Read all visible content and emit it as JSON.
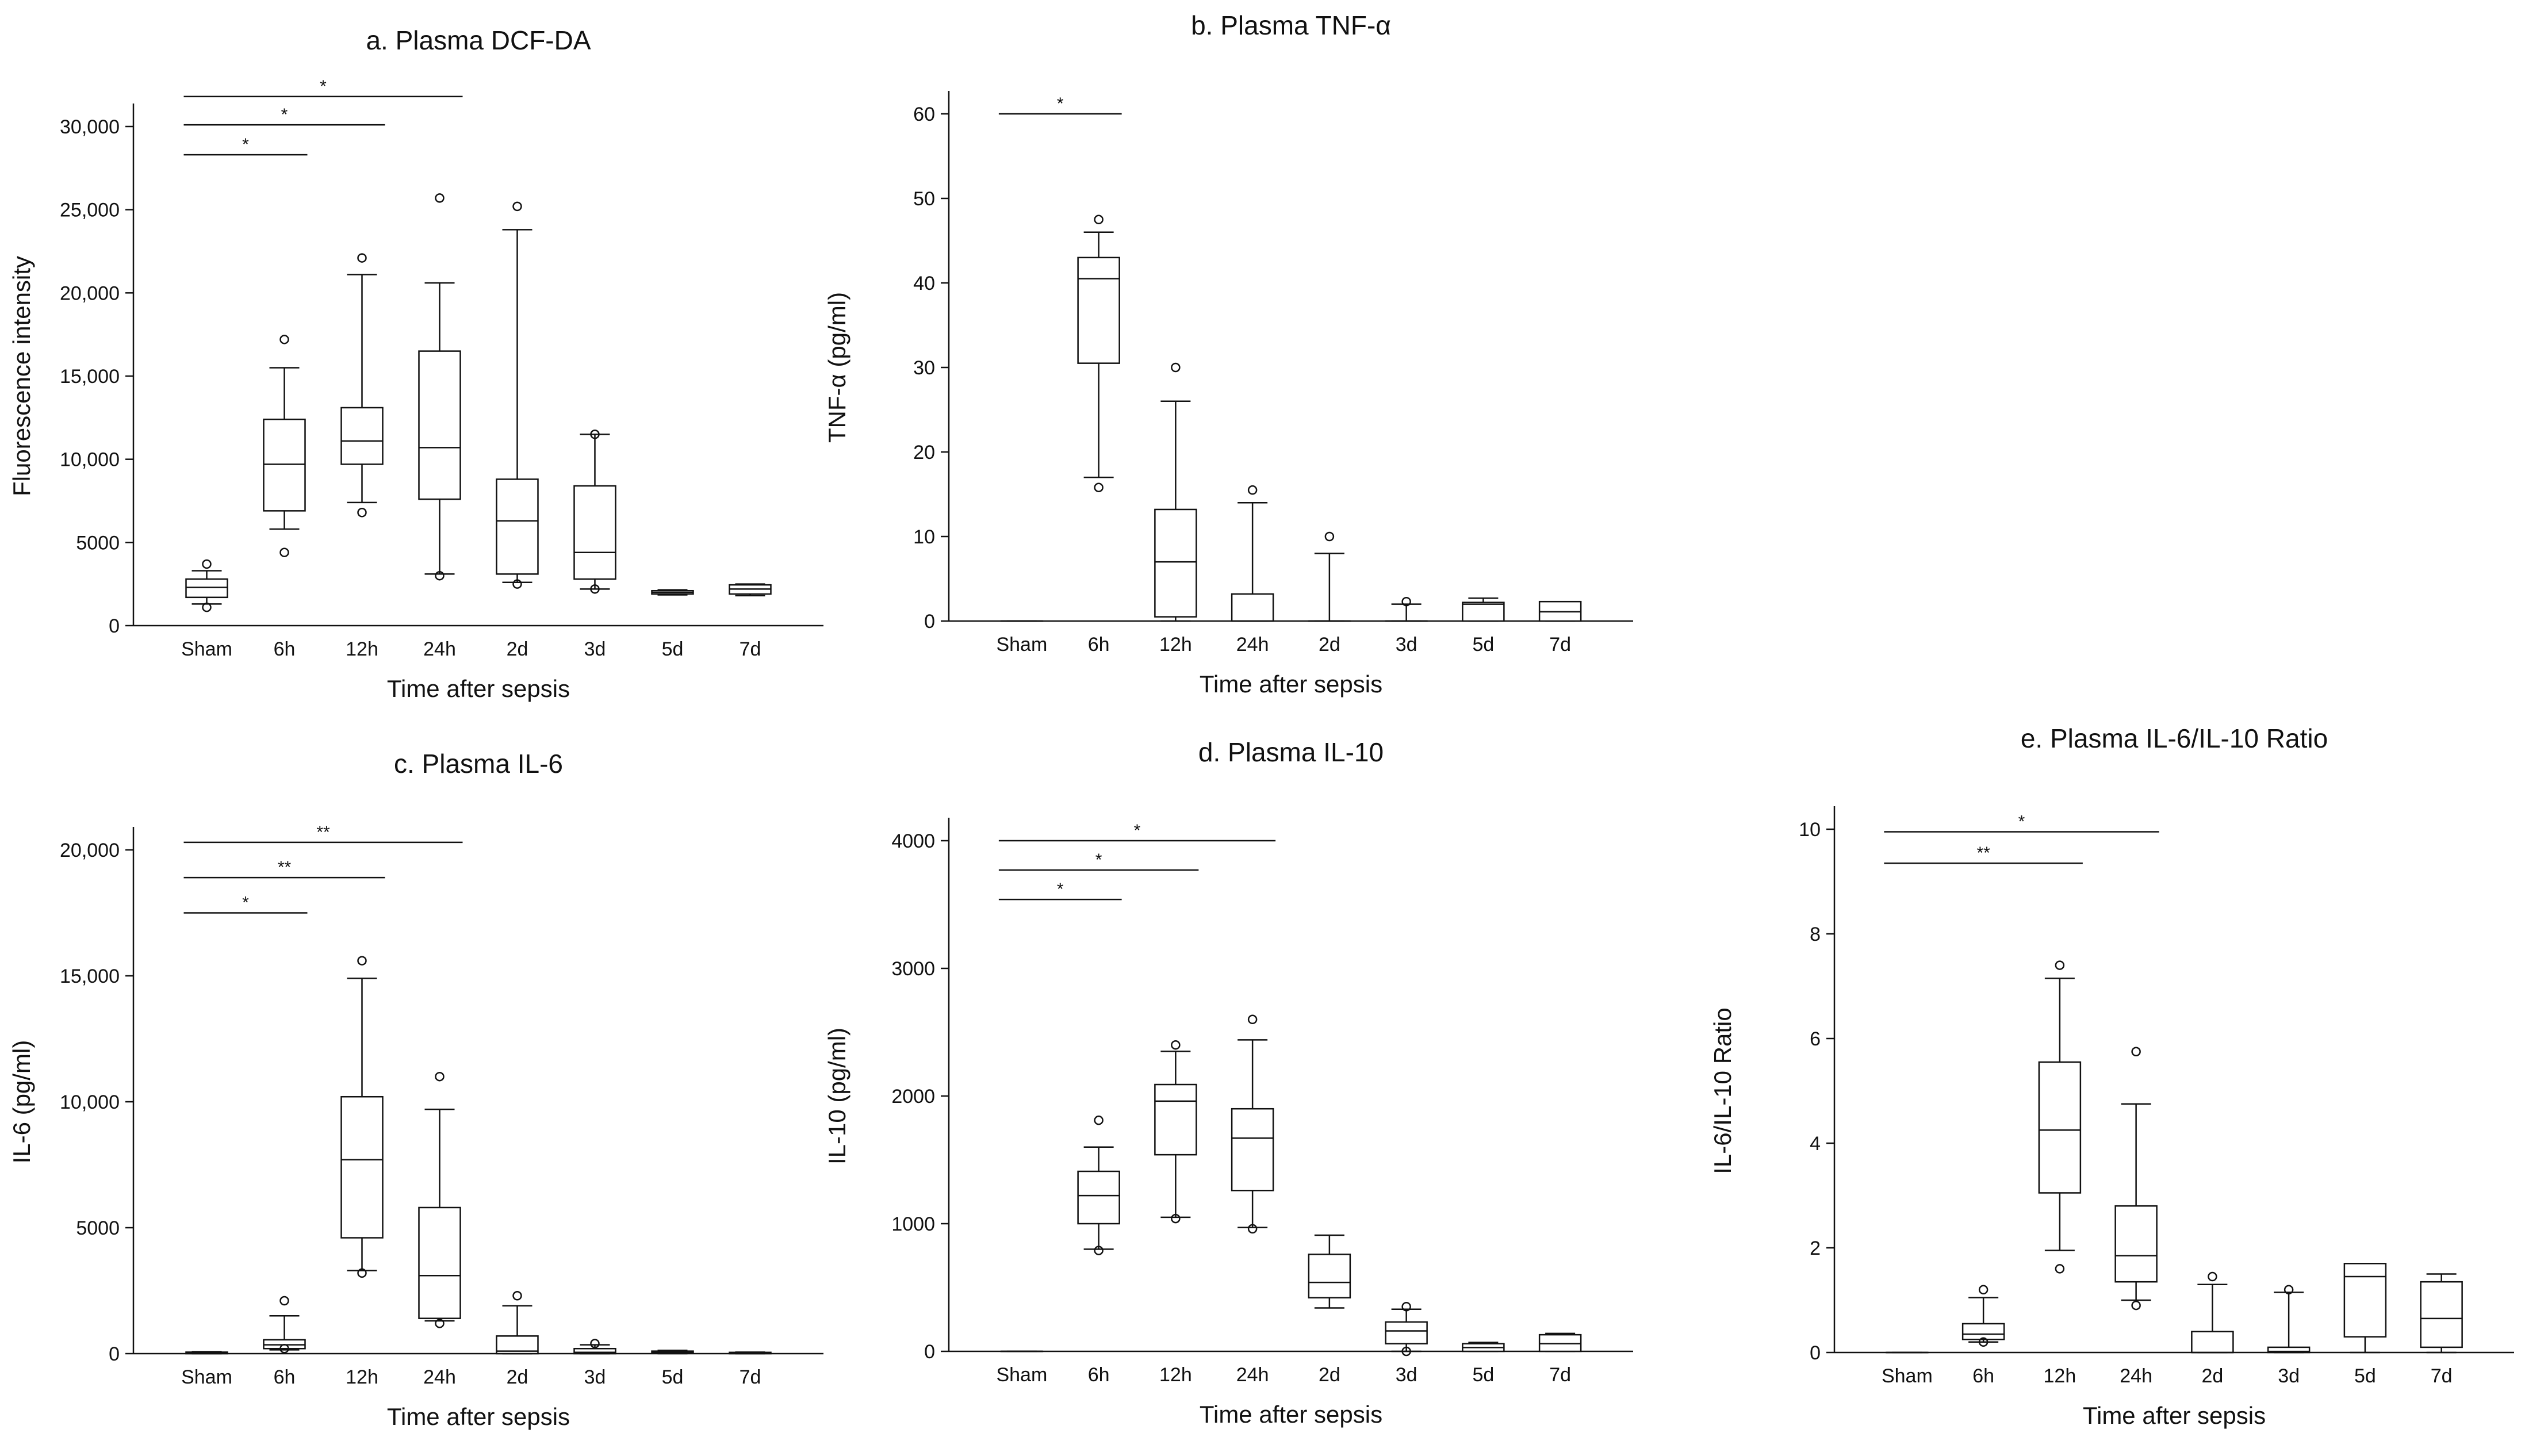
{
  "figure": {
    "colors": {
      "ink": "#111111",
      "box_fill": "#ffffff",
      "background": "#ffffff"
    }
  },
  "chart_data": [
    {
      "id": "a",
      "type": "boxplot",
      "title": "a. Plasma DCF-DA",
      "xlabel": "Time after sepsis",
      "ylabel": "Fluorescence intensity",
      "ylim": [
        0,
        30000
      ],
      "yticks": [
        0,
        5000,
        10000,
        15000,
        20000,
        25000,
        30000
      ],
      "ytick_labels": [
        "0",
        "5000",
        "10,000",
        "15,000",
        "20,000",
        "25,000",
        "30,000"
      ],
      "categories": [
        "Sham",
        "6h",
        "12h",
        "24h",
        "2d",
        "3d",
        "5d",
        "7d"
      ],
      "boxes": [
        {
          "q1": 1700,
          "median": 2300,
          "q3": 2800,
          "whisker_low": 1300,
          "whisker_high": 3300,
          "outliers": [
            1100,
            3700
          ]
        },
        {
          "q1": 6900,
          "median": 9700,
          "q3": 12400,
          "whisker_low": 5800,
          "whisker_high": 15500,
          "outliers": [
            4400,
            17200
          ]
        },
        {
          "q1": 9700,
          "median": 11100,
          "q3": 13100,
          "whisker_low": 7400,
          "whisker_high": 21100,
          "outliers": [
            6800,
            22100
          ]
        },
        {
          "q1": 7600,
          "median": 10700,
          "q3": 16500,
          "whisker_low": 3100,
          "whisker_high": 20600,
          "outliers": [
            3000,
            25700
          ]
        },
        {
          "q1": 3100,
          "median": 6300,
          "q3": 8800,
          "whisker_low": 2600,
          "whisker_high": 23800,
          "outliers": [
            2500,
            25200
          ]
        },
        {
          "q1": 2800,
          "median": 4400,
          "q3": 8400,
          "whisker_low": 2200,
          "whisker_high": 11500,
          "outliers": [
            2200,
            11500
          ]
        },
        {
          "q1": 1900,
          "median": 2000,
          "q3": 2100,
          "whisker_low": 1850,
          "whisker_high": 2150,
          "outliers": []
        },
        {
          "q1": 1900,
          "median": 2200,
          "q3": 2450,
          "whisker_low": 1800,
          "whisker_high": 2500,
          "outliers": []
        }
      ],
      "significance": [
        {
          "from": "Sham",
          "to": "6h",
          "label": "*",
          "y": 28300
        },
        {
          "from": "Sham",
          "to": "12h",
          "label": "*",
          "y": 30100
        },
        {
          "from": "Sham",
          "to": "24h",
          "label": "*",
          "y": 31800
        }
      ]
    },
    {
      "id": "b",
      "type": "boxplot",
      "title": "b. Plasma TNF-α",
      "xlabel": "Time after sepsis",
      "ylabel": "TNF-α (pg/ml)",
      "ylim": [
        0,
        60
      ],
      "yticks": [
        0,
        10,
        20,
        30,
        40,
        50,
        60
      ],
      "ytick_labels": [
        "0",
        "10",
        "20",
        "30",
        "40",
        "50",
        "60"
      ],
      "categories": [
        "Sham",
        "6h",
        "12h",
        "24h",
        "2d",
        "3d",
        "5d",
        "7d"
      ],
      "boxes": [
        {
          "q1": 0,
          "median": 0,
          "q3": 0,
          "whisker_low": 0,
          "whisker_high": 0,
          "outliers": []
        },
        {
          "q1": 30.5,
          "median": 40.5,
          "q3": 43,
          "whisker_low": 17,
          "whisker_high": 46,
          "outliers": [
            15.8,
            47.5
          ]
        },
        {
          "q1": 0.5,
          "median": 7,
          "q3": 13.2,
          "whisker_low": 0,
          "whisker_high": 26,
          "outliers": [
            30
          ]
        },
        {
          "q1": 0,
          "median": 0,
          "q3": 3.2,
          "whisker_low": 0,
          "whisker_high": 14,
          "outliers": [
            15.5
          ]
        },
        {
          "q1": 0,
          "median": 0,
          "q3": 0,
          "whisker_low": 0,
          "whisker_high": 8,
          "outliers": [
            10
          ]
        },
        {
          "q1": 0,
          "median": 0,
          "q3": 0,
          "whisker_low": 0,
          "whisker_high": 2,
          "outliers": [
            2.3
          ]
        },
        {
          "q1": 0,
          "median": 2,
          "q3": 2.2,
          "whisker_low": 0,
          "whisker_high": 2.7,
          "outliers": []
        },
        {
          "q1": 0,
          "median": 1.1,
          "q3": 2.3,
          "whisker_low": 0,
          "whisker_high": 2.3,
          "outliers": []
        }
      ],
      "significance": [
        {
          "from": "Sham",
          "to": "6h",
          "label": "*",
          "y": 60
        }
      ]
    },
    {
      "id": "c",
      "type": "boxplot",
      "title": "c. Plasma IL-6",
      "xlabel": "Time after sepsis",
      "ylabel": "IL-6 (pg/ml)",
      "ylim": [
        0,
        20000
      ],
      "yticks": [
        0,
        5000,
        10000,
        15000,
        20000
      ],
      "ytick_labels": [
        "0",
        "5000",
        "10,000",
        "15,000",
        "20,000"
      ],
      "categories": [
        "Sham",
        "6h",
        "12h",
        "24h",
        "2d",
        "3d",
        "5d",
        "7d"
      ],
      "boxes": [
        {
          "q1": 0,
          "median": 20,
          "q3": 60,
          "whisker_low": 0,
          "whisker_high": 80,
          "outliers": []
        },
        {
          "q1": 200,
          "median": 350,
          "q3": 550,
          "whisker_low": 150,
          "whisker_high": 1500,
          "outliers": [
            200,
            2100
          ]
        },
        {
          "q1": 4600,
          "median": 7700,
          "q3": 10200,
          "whisker_low": 3300,
          "whisker_high": 14900,
          "outliers": [
            3200,
            15600
          ]
        },
        {
          "q1": 1400,
          "median": 3100,
          "q3": 5800,
          "whisker_low": 1300,
          "whisker_high": 9700,
          "outliers": [
            1200,
            11000
          ]
        },
        {
          "q1": 0,
          "median": 100,
          "q3": 700,
          "whisker_low": 0,
          "whisker_high": 1900,
          "outliers": [
            2300
          ]
        },
        {
          "q1": 0,
          "median": 50,
          "q3": 200,
          "whisker_low": 0,
          "whisker_high": 350,
          "outliers": [
            400
          ]
        },
        {
          "q1": 20,
          "median": 50,
          "q3": 100,
          "whisker_low": 0,
          "whisker_high": 130,
          "outliers": []
        },
        {
          "q1": 0,
          "median": 20,
          "q3": 50,
          "whisker_low": 0,
          "whisker_high": 60,
          "outliers": []
        }
      ],
      "significance": [
        {
          "from": "Sham",
          "to": "6h",
          "label": "*",
          "y": 17500
        },
        {
          "from": "Sham",
          "to": "12h",
          "label": "**",
          "y": 18900
        },
        {
          "from": "Sham",
          "to": "24h",
          "label": "**",
          "y": 20300
        }
      ]
    },
    {
      "id": "d",
      "type": "boxplot",
      "title": "d. Plasma IL-10",
      "xlabel": "Time after sepsis",
      "ylabel": "IL-10 (pg/ml)",
      "ylim": [
        0,
        4000
      ],
      "yticks": [
        0,
        1000,
        2000,
        3000,
        4000
      ],
      "ytick_labels": [
        "0",
        "1000",
        "2000",
        "3000",
        "4000"
      ],
      "categories": [
        "Sham",
        "6h",
        "12h",
        "24h",
        "2d",
        "3d",
        "5d",
        "7d"
      ],
      "boxes": [
        {
          "q1": 0,
          "median": 0,
          "q3": 0,
          "whisker_low": 0,
          "whisker_high": 0,
          "outliers": []
        },
        {
          "q1": 1000,
          "median": 1220,
          "q3": 1410,
          "whisker_low": 800,
          "whisker_high": 1600,
          "outliers": [
            790,
            1810
          ]
        },
        {
          "q1": 1540,
          "median": 1960,
          "q3": 2090,
          "whisker_low": 1050,
          "whisker_high": 2350,
          "outliers": [
            1040,
            2400
          ]
        },
        {
          "q1": 1260,
          "median": 1670,
          "q3": 1900,
          "whisker_low": 970,
          "whisker_high": 2440,
          "outliers": [
            960,
            2600
          ]
        },
        {
          "q1": 420,
          "median": 540,
          "q3": 760,
          "whisker_low": 340,
          "whisker_high": 910,
          "outliers": []
        },
        {
          "q1": 60,
          "median": 160,
          "q3": 230,
          "whisker_low": 0,
          "whisker_high": 330,
          "outliers": [
            0,
            350
          ]
        },
        {
          "q1": 0,
          "median": 30,
          "q3": 60,
          "whisker_low": 0,
          "whisker_high": 70,
          "outliers": []
        },
        {
          "q1": 0,
          "median": 60,
          "q3": 130,
          "whisker_low": 0,
          "whisker_high": 140,
          "outliers": []
        }
      ],
      "significance": [
        {
          "from": "Sham",
          "to": "6h",
          "label": "*",
          "y": 3540
        },
        {
          "from": "Sham",
          "to": "12h",
          "label": "*",
          "y": 3770
        },
        {
          "from": "Sham",
          "to": "24h",
          "label": "*",
          "y": 4000
        }
      ]
    },
    {
      "id": "e",
      "type": "boxplot",
      "title": "e. Plasma IL-6/IL-10 Ratio",
      "xlabel": "Time after sepsis",
      "ylabel": "IL-6/IL-10 Ratio",
      "ylim": [
        0,
        10
      ],
      "yticks": [
        0,
        2,
        4,
        6,
        8,
        10
      ],
      "ytick_labels": [
        "0",
        "2",
        "4",
        "6",
        "8",
        "10"
      ],
      "categories": [
        "Sham",
        "6h",
        "12h",
        "24h",
        "2d",
        "3d",
        "5d",
        "7d"
      ],
      "boxes": [
        {
          "q1": 0,
          "median": 0,
          "q3": 0,
          "whisker_low": 0,
          "whisker_high": 0,
          "outliers": []
        },
        {
          "q1": 0.25,
          "median": 0.35,
          "q3": 0.55,
          "whisker_low": 0.2,
          "whisker_high": 1.05,
          "outliers": [
            0.2,
            1.2
          ]
        },
        {
          "q1": 3.05,
          "median": 4.25,
          "q3": 5.55,
          "whisker_low": 1.95,
          "whisker_high": 7.15,
          "outliers": [
            1.6,
            7.4
          ]
        },
        {
          "q1": 1.35,
          "median": 1.85,
          "q3": 2.8,
          "whisker_low": 1.0,
          "whisker_high": 4.75,
          "outliers": [
            0.9,
            5.75
          ]
        },
        {
          "q1": 0,
          "median": 0,
          "q3": 0.4,
          "whisker_low": 0,
          "whisker_high": 1.3,
          "outliers": [
            1.45
          ]
        },
        {
          "q1": 0,
          "median": 0.02,
          "q3": 0.1,
          "whisker_low": 0,
          "whisker_high": 1.15,
          "outliers": [
            1.2
          ]
        },
        {
          "q1": 0.3,
          "median": 1.45,
          "q3": 1.7,
          "whisker_low": 0,
          "whisker_high": 1.7,
          "outliers": []
        },
        {
          "q1": 0.1,
          "median": 0.65,
          "q3": 1.35,
          "whisker_low": 0,
          "whisker_high": 1.5,
          "outliers": []
        }
      ],
      "significance": [
        {
          "from": "Sham",
          "to": "12h",
          "label": "**",
          "y": 9.35
        },
        {
          "from": "Sham",
          "to": "24h",
          "label": "*",
          "y": 9.95
        }
      ]
    }
  ]
}
